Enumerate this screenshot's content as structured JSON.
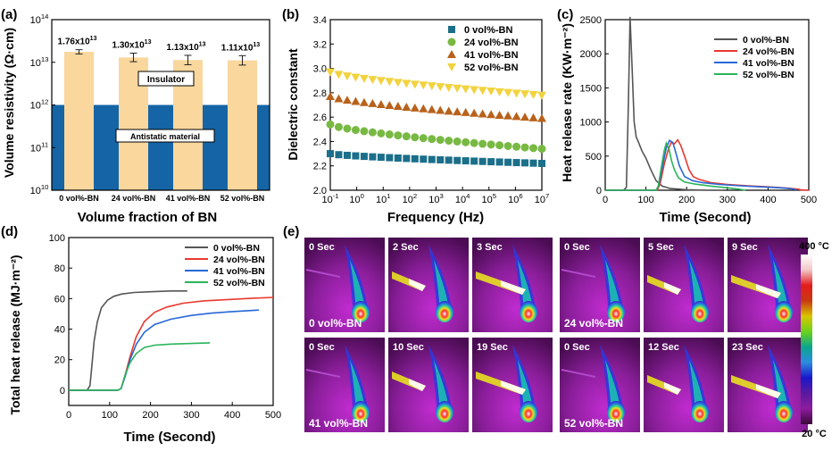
{
  "panel_labels": [
    "(a)",
    "(b)",
    "(c)",
    "(d)",
    "(e)"
  ],
  "chart_data": [
    {
      "id": "a",
      "type": "bar",
      "title": "",
      "xlabel": "Volume fraction of BN",
      "ylabel": "Volume resistivity (Ω·cm)",
      "yscale": "log",
      "ylim_exp": [
        10,
        14
      ],
      "ytick_base": "10",
      "ytick_exps": [
        "10",
        "11",
        "12",
        "13",
        "14"
      ],
      "categories": [
        "0 vol%-BN",
        "24 vol%-BN",
        "41 vol%-BN",
        "52 vol%-BN"
      ],
      "values": [
        17600000000000.0,
        13000000000000.0,
        11300000000000.0,
        11100000000000.0
      ],
      "errors_log": [
        0.05,
        0.1,
        0.11,
        0.11
      ],
      "value_labels": [
        {
          "mantissa": "1.76x10",
          "exp": "13"
        },
        {
          "mantissa": "1.30x10",
          "exp": "13"
        },
        {
          "mantissa": "1.13x10",
          "exp": "13"
        },
        {
          "mantissa": "1.11x10",
          "exp": "13"
        }
      ],
      "threshold": 1000000000000.0,
      "regions": [
        {
          "name": "Insulator",
          "color": "#ffffff"
        },
        {
          "name": "Antistatic material",
          "color": "#1565a6"
        }
      ],
      "bar_color": "#f9d79d"
    },
    {
      "id": "b",
      "type": "scatter",
      "xlabel": "Frequency (Hz)",
      "ylabel": "Dielectric constant",
      "xscale": "log",
      "xlim_exp": [
        -1,
        7
      ],
      "xtick_base": "10",
      "xtick_exps": [
        "-1",
        "0",
        "1",
        "2",
        "3",
        "4",
        "5",
        "6",
        "7"
      ],
      "ylim": [
        2.0,
        3.4
      ],
      "yticks": [
        "2.0",
        "2.2",
        "2.4",
        "2.6",
        "2.8",
        "3.0",
        "3.2",
        "3.4"
      ],
      "series": [
        {
          "name": "0 vol%-BN",
          "marker": "square",
          "color": "#1b6f8a",
          "start": 2.3,
          "end": 2.22
        },
        {
          "name": "24 vol%-BN",
          "marker": "circle",
          "color": "#78b943",
          "start": 2.54,
          "end": 2.34
        },
        {
          "name": "41 vol%-BN",
          "marker": "triangle-up",
          "color": "#b8621b",
          "start": 2.77,
          "end": 2.59
        },
        {
          "name": "52 vol%-BN",
          "marker": "triangle-down",
          "color": "#f2d33f",
          "start": 2.97,
          "end": 2.78
        }
      ]
    },
    {
      "id": "c",
      "type": "line",
      "xlabel": "Time (Second)",
      "ylabel": "Heat release rate (KW·m⁻²)",
      "xlim": [
        0,
        500
      ],
      "xticks": [
        "0",
        "100",
        "200",
        "300",
        "400",
        "500"
      ],
      "ylim": [
        0,
        2400
      ],
      "yticks": [
        "0",
        "500",
        "1000",
        "1500",
        "2000",
        "2500"
      ],
      "series": [
        {
          "name": "0 vol%-BN",
          "color": "#555555",
          "points": [
            [
              0,
              0
            ],
            [
              45,
              0
            ],
            [
              52,
              40
            ],
            [
              57,
              1300
            ],
            [
              61,
              2540
            ],
            [
              66,
              1800
            ],
            [
              71,
              1000
            ],
            [
              76,
              780
            ],
            [
              82,
              700
            ],
            [
              90,
              580
            ],
            [
              100,
              470
            ],
            [
              112,
              300
            ],
            [
              125,
              140
            ],
            [
              140,
              60
            ],
            [
              160,
              25
            ],
            [
              200,
              8
            ],
            [
              250,
              0
            ],
            [
              290,
              0
            ]
          ]
        },
        {
          "name": "24 vol%-BN",
          "color": "#e8392f",
          "points": [
            [
              0,
              0
            ],
            [
              128,
              0
            ],
            [
              135,
              100
            ],
            [
              145,
              380
            ],
            [
              155,
              600
            ],
            [
              162,
              700
            ],
            [
              170,
              680
            ],
            [
              178,
              740
            ],
            [
              186,
              650
            ],
            [
              196,
              480
            ],
            [
              206,
              300
            ],
            [
              216,
              200
            ],
            [
              230,
              160
            ],
            [
              260,
              110
            ],
            [
              300,
              85
            ],
            [
              350,
              65
            ],
            [
              400,
              50
            ],
            [
              450,
              30
            ],
            [
              475,
              15
            ],
            [
              480,
              5
            ],
            [
              500,
              0
            ]
          ]
        },
        {
          "name": "41 vol%-BN",
          "color": "#2668d6",
          "points": [
            [
              0,
              0
            ],
            [
              125,
              0
            ],
            [
              132,
              80
            ],
            [
              140,
              330
            ],
            [
              150,
              620
            ],
            [
              158,
              730
            ],
            [
              166,
              700
            ],
            [
              174,
              540
            ],
            [
              182,
              360
            ],
            [
              195,
              200
            ],
            [
              215,
              140
            ],
            [
              240,
              110
            ],
            [
              280,
              85
            ],
            [
              330,
              65
            ],
            [
              380,
              50
            ],
            [
              430,
              35
            ],
            [
              460,
              20
            ],
            [
              470,
              5
            ]
          ]
        },
        {
          "name": "52 vol%-BN",
          "color": "#2ab35a",
          "points": [
            [
              0,
              0
            ],
            [
              125,
              0
            ],
            [
              130,
              50
            ],
            [
              138,
              340
            ],
            [
              145,
              580
            ],
            [
              150,
              690
            ],
            [
              157,
              600
            ],
            [
              163,
              430
            ],
            [
              170,
              300
            ],
            [
              180,
              180
            ],
            [
              195,
              120
            ],
            [
              220,
              90
            ],
            [
              260,
              60
            ],
            [
              300,
              35
            ],
            [
              330,
              15
            ],
            [
              345,
              0
            ]
          ]
        }
      ]
    },
    {
      "id": "d",
      "type": "line",
      "xlabel": "Time (Second)",
      "ylabel": "Total heat release (MJ·m⁻²)",
      "xlim": [
        0,
        500
      ],
      "xticks": [
        "0",
        "100",
        "200",
        "300",
        "400",
        "500"
      ],
      "ylim": [
        -10,
        100
      ],
      "yticks": [
        "0",
        "20",
        "40",
        "60",
        "80",
        "100"
      ],
      "series": [
        {
          "name": "0 vol%-BN",
          "color": "#555555",
          "points": [
            [
              0,
              0
            ],
            [
              45,
              0
            ],
            [
              52,
              3
            ],
            [
              56,
              14
            ],
            [
              62,
              32
            ],
            [
              70,
              45
            ],
            [
              80,
              54
            ],
            [
              95,
              59
            ],
            [
              110,
              61.5
            ],
            [
              130,
              63
            ],
            [
              160,
              64
            ],
            [
              200,
              64.5
            ],
            [
              250,
              65
            ],
            [
              290,
              65
            ]
          ]
        },
        {
          "name": "24 vol%-BN",
          "color": "#e8392f",
          "points": [
            [
              0,
              0
            ],
            [
              120,
              0
            ],
            [
              128,
              1
            ],
            [
              138,
              10
            ],
            [
              150,
              22
            ],
            [
              165,
              35
            ],
            [
              185,
              45
            ],
            [
              210,
              51
            ],
            [
              240,
              54.5
            ],
            [
              280,
              57
            ],
            [
              330,
              58.5
            ],
            [
              400,
              59.5
            ],
            [
              450,
              60.3
            ],
            [
              500,
              60.8
            ]
          ]
        },
        {
          "name": "41 vol%-BN",
          "color": "#2668d6",
          "points": [
            [
              0,
              0
            ],
            [
              120,
              0
            ],
            [
              128,
              1
            ],
            [
              138,
              9
            ],
            [
              150,
              20
            ],
            [
              165,
              30
            ],
            [
              185,
              38
            ],
            [
              210,
              43
            ],
            [
              250,
              46.5
            ],
            [
              300,
              49
            ],
            [
              350,
              50.5
            ],
            [
              400,
              51.5
            ],
            [
              465,
              52.5
            ]
          ]
        },
        {
          "name": "52 vol%-BN",
          "color": "#2ab35a",
          "points": [
            [
              0,
              0
            ],
            [
              120,
              0
            ],
            [
              128,
              1
            ],
            [
              138,
              10
            ],
            [
              150,
              18
            ],
            [
              165,
              24
            ],
            [
              185,
              28
            ],
            [
              210,
              29.5
            ],
            [
              250,
              30.2
            ],
            [
              300,
              30.6
            ],
            [
              345,
              31
            ]
          ]
        }
      ]
    }
  ],
  "panel_e": {
    "groups": [
      {
        "sample": "0 vol%-BN",
        "times": [
          "0 Sec",
          "2 Sec",
          "3 Sec"
        ]
      },
      {
        "sample": "24 vol%-BN",
        "times": [
          "0 Sec",
          "5 Sec",
          "9 Sec"
        ]
      },
      {
        "sample": "41 vol%-BN",
        "times": [
          "0 Sec",
          "10 Sec",
          "19 Sec"
        ]
      },
      {
        "sample": "52 vol%-BN",
        "times": [
          "0 Sec",
          "12 Sec",
          "23 Sec"
        ]
      }
    ],
    "colorbar": {
      "max_label": "400 °C",
      "min_label": "20 °C",
      "colors": [
        "#ffffff",
        "#f2c6c6",
        "#e21c1c",
        "#c83a10",
        "#d8c600",
        "#6ad21c",
        "#0ca68c",
        "#2c8ce0",
        "#1818c8",
        "#5a1aa0",
        "#8c1c9c",
        "#3a0838"
      ]
    }
  }
}
